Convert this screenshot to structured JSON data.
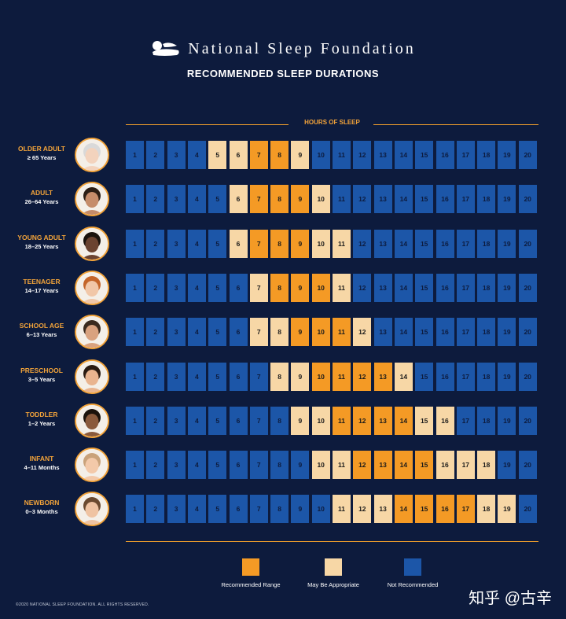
{
  "brand": {
    "name": "National Sleep Foundation",
    "subtitle": "RECOMMENDED SLEEP DURATIONS"
  },
  "header": {
    "hours_label": "HOURS OF SLEEP"
  },
  "colors": {
    "background": "#0d1b3d",
    "recommended": "#f49a25",
    "may_be_appropriate": "#f7d7a6",
    "not_recommended": "#1c56a8",
    "accent": "#f2a33a"
  },
  "chart_data": {
    "type": "table",
    "title": "RECOMMENDED SLEEP DURATIONS",
    "x_label": "HOURS OF SLEEP",
    "hours": [
      1,
      2,
      3,
      4,
      5,
      6,
      7,
      8,
      9,
      10,
      11,
      12,
      13,
      14,
      15,
      16,
      17,
      18,
      19,
      20
    ],
    "groups": [
      {
        "name": "OLDER ADULT",
        "range": "≥ 65 Years",
        "recommended": [
          7,
          8
        ],
        "may_be_appropriate": [
          5,
          6,
          9
        ]
      },
      {
        "name": "ADULT",
        "range": "26–64 Years",
        "recommended": [
          7,
          8,
          9
        ],
        "may_be_appropriate": [
          6,
          10
        ]
      },
      {
        "name": "YOUNG ADULT",
        "range": "18–25 Years",
        "recommended": [
          7,
          8,
          9
        ],
        "may_be_appropriate": [
          6,
          10,
          11
        ]
      },
      {
        "name": "TEENAGER",
        "range": "14–17 Years",
        "recommended": [
          8,
          9,
          10
        ],
        "may_be_appropriate": [
          7,
          11
        ]
      },
      {
        "name": "SCHOOL AGE",
        "range": "6–13 Years",
        "recommended": [
          9,
          10,
          11
        ],
        "may_be_appropriate": [
          7,
          8,
          12
        ]
      },
      {
        "name": "PRESCHOOL",
        "range": "3–5 Years",
        "recommended": [
          10,
          11,
          12,
          13
        ],
        "may_be_appropriate": [
          8,
          9,
          14
        ]
      },
      {
        "name": "TODDLER",
        "range": "1–2 Years",
        "recommended": [
          11,
          12,
          13,
          14
        ],
        "may_be_appropriate": [
          9,
          10,
          15,
          16
        ]
      },
      {
        "name": "INFANT",
        "range": "4–11 Months",
        "recommended": [
          12,
          13,
          14,
          15
        ],
        "may_be_appropriate": [
          10,
          11,
          16,
          17,
          18
        ]
      },
      {
        "name": "NEWBORN",
        "range": "0–3 Months",
        "recommended": [
          14,
          15,
          16,
          17
        ],
        "may_be_appropriate": [
          11,
          12,
          13,
          18,
          19
        ]
      }
    ],
    "legend": [
      "Recommended Range",
      "May Be Appropriate",
      "Not Recommended"
    ]
  },
  "footer": {
    "copyright": "©2020 NATIONAL SLEEP FOUNDATION. ALL RIGHTS RESERVED.",
    "watermark": "知乎 @古辛"
  }
}
